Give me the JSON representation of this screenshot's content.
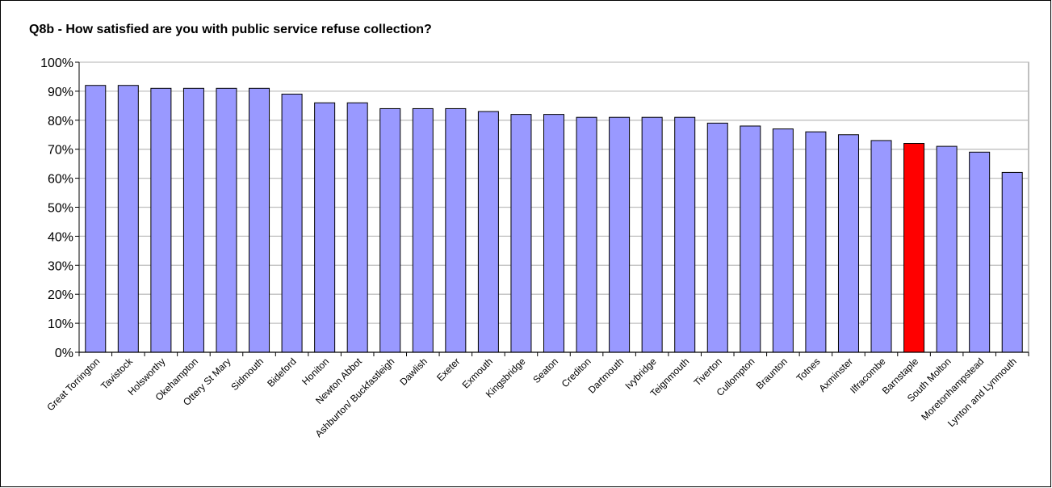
{
  "chart_data": {
    "type": "bar",
    "title": "Q8b - How satisfied are you with public service refuse collection?",
    "categories": [
      "Great Torrington",
      "Tavistock",
      "Holsworthy",
      "Okehampton",
      "Ottery St Mary",
      "Sidmouth",
      "Bideford",
      "Honiton",
      "Newton Abbot",
      "Ashburton/ Buckfastleigh",
      "Dawlish",
      "Exeter",
      "Exmouth",
      "Kingsbridge",
      "Seaton",
      "Crediton",
      "Dartmouth",
      "Ivybridge",
      "Teignmouth",
      "Tiverton",
      "Cullompton",
      "Braunton",
      "Totnes",
      "Axminster",
      "Ilfracombe",
      "Barnstaple",
      "South Molton",
      "Moretonhampstead",
      "Lynton and Lynmouth"
    ],
    "values": [
      92,
      92,
      91,
      91,
      91,
      91,
      89,
      86,
      86,
      84,
      84,
      84,
      83,
      82,
      82,
      81,
      81,
      81,
      81,
      79,
      78,
      77,
      76,
      75,
      73,
      72,
      71,
      69,
      62
    ],
    "highlight_index": 25,
    "ylim": [
      0,
      100
    ],
    "y_ticks": [
      "0%",
      "10%",
      "20%",
      "30%",
      "40%",
      "50%",
      "60%",
      "70%",
      "80%",
      "90%",
      "100%"
    ],
    "grid": true,
    "colors": {
      "bar": "#9999FF",
      "highlight": "#FF0000",
      "grid": "#C0C0C0",
      "axis": "#808080"
    }
  }
}
